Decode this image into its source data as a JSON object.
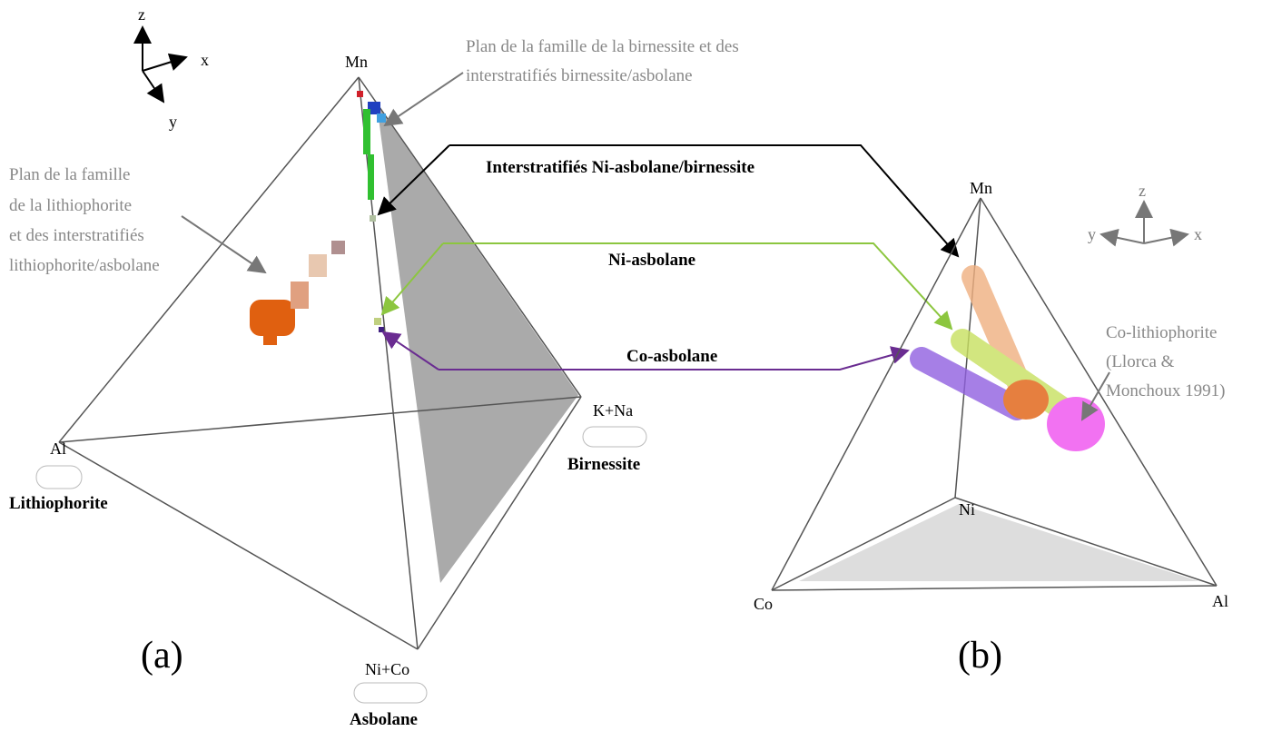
{
  "panel_a": {
    "axes": {
      "z": "z",
      "x": "x",
      "y": "y"
    },
    "vertices": {
      "top": "Mn",
      "left": "Al",
      "right": "K+Na",
      "bottom": "Ni+Co"
    },
    "minerals": {
      "left": "Lithiophorite",
      "right": "Birnessite",
      "bottom": "Asbolane"
    },
    "notes": {
      "birnessite_plane": [
        "Plan de la famille de la birnessite et des",
        "interstratifiés birnessite/asbolane"
      ],
      "lithiophorite_plane": [
        "Plan de la famille",
        "de la lithiophorite",
        "et des interstratifiés",
        "lithiophorite/asbolane"
      ]
    },
    "label": "(a)"
  },
  "links": [
    "Interstratifiés Ni-asbolane/birnessite",
    "Ni-asbolane",
    "Co-asbolane"
  ],
  "panel_b": {
    "axes": {
      "z": "z",
      "x": "x",
      "y": "y"
    },
    "vertices": {
      "top": "Mn",
      "back": "Ni",
      "left": "Co",
      "right": "Al"
    },
    "note": [
      "Co-lithiophorite",
      "(Llorca &",
      "Monchoux 1991)"
    ],
    "label": "(b)"
  }
}
